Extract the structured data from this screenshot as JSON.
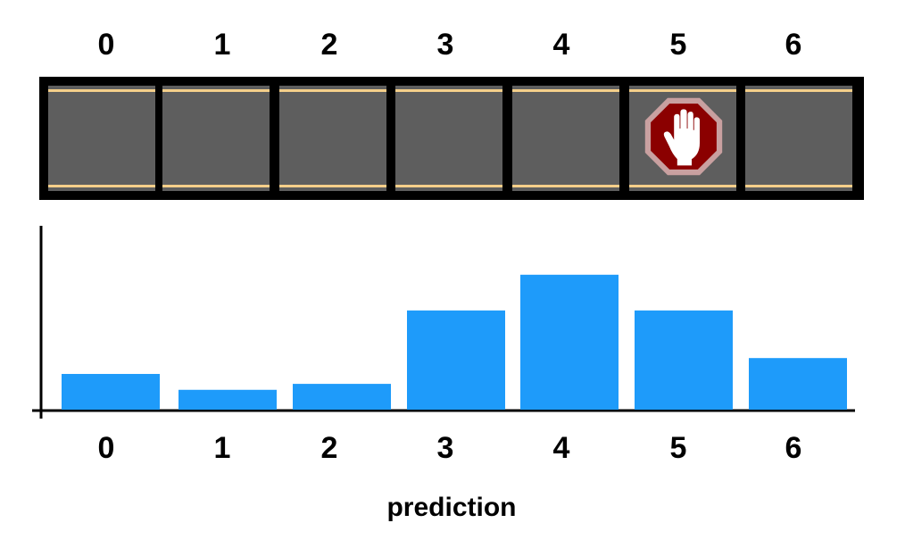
{
  "colors": {
    "road_border": "#000000",
    "road_surface": "#5e5e5e",
    "lane_line": "#f5cf8a",
    "bar": "#1e9bfa",
    "stop_sign_fill": "#8b0000",
    "stop_sign_rim": "#c9a0a0",
    "hand": "#ffffff"
  },
  "track": {
    "cell_labels": [
      "0",
      "1",
      "2",
      "3",
      "4",
      "5",
      "6"
    ],
    "stop_sign_cell_index": 5,
    "stop_sign_icon": "stop-hand-icon"
  },
  "chart_data": {
    "type": "bar",
    "categories": [
      "0",
      "1",
      "2",
      "3",
      "4",
      "5",
      "6"
    ],
    "values": [
      0.09,
      0.05,
      0.065,
      0.25,
      0.34,
      0.25,
      0.13
    ],
    "title": "",
    "xlabel": "prediction",
    "ylabel": "",
    "ylim": [
      0,
      0.47
    ]
  }
}
